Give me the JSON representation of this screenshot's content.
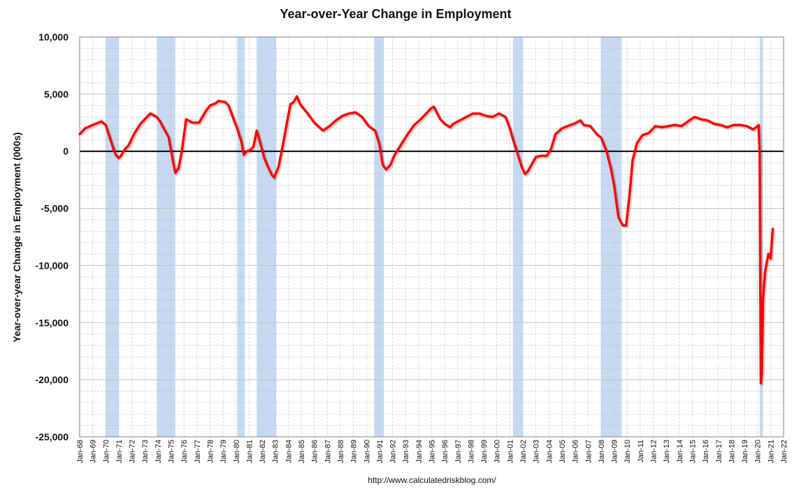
{
  "chart_data": {
    "type": "line",
    "title": "Year-over-Year Change in Employment",
    "ylabel": "Year-over-year Change in Employment (000s)",
    "xlabel": "",
    "source": "http://www.calculatedriskblog.com/",
    "ylim": [
      -25000,
      10000
    ],
    "xlim": [
      "1968-01",
      "2022-01"
    ],
    "y_ticks": [
      10000,
      5000,
      0,
      -5000,
      -10000,
      -15000,
      -20000,
      -25000
    ],
    "y_tick_labels": [
      "10,000",
      "5,000",
      "0",
      "-5,000",
      "-10,000",
      "-15,000",
      "-20,000",
      "-25,000"
    ],
    "x_tick_labels": [
      "Jan-68",
      "Jan-69",
      "Jan-70",
      "Jan-71",
      "Jan-72",
      "Jan-73",
      "Jan-74",
      "Jan-75",
      "Jan-76",
      "Jan-77",
      "Jan-78",
      "Jan-79",
      "Jan-80",
      "Jan-81",
      "Jan-82",
      "Jan-83",
      "Jan-84",
      "Jan-85",
      "Jan-86",
      "Jan-87",
      "Jan-88",
      "Jan-89",
      "Jan-90",
      "Jan-91",
      "Jan-92",
      "Jan-93",
      "Jan-94",
      "Jan-95",
      "Jan-96",
      "Jan-97",
      "Jan-98",
      "Jan-99",
      "Jan-00",
      "Jan-01",
      "Jan-02",
      "Jan-03",
      "Jan-04",
      "Jan-05",
      "Jan-06",
      "Jan-07",
      "Jan-08",
      "Jan-09",
      "Jan-10",
      "Jan-11",
      "Jan-12",
      "Jan-13",
      "Jan-14",
      "Jan-15",
      "Jan-16",
      "Jan-17",
      "Jan-18",
      "Jan-19",
      "Jan-20",
      "Jan-21",
      "Jan-22"
    ],
    "grid": true,
    "recessions": [
      {
        "start": "1970-01",
        "end": "1970-12"
      },
      {
        "start": "1973-12",
        "end": "1975-04"
      },
      {
        "start": "1980-02",
        "end": "1980-08"
      },
      {
        "start": "1981-08",
        "end": "1983-01"
      },
      {
        "start": "1990-08",
        "end": "1991-04"
      },
      {
        "start": "2001-04",
        "end": "2001-12"
      },
      {
        "start": "2008-01",
        "end": "2009-07"
      },
      {
        "start": "2020-03",
        "end": "2020-05"
      }
    ],
    "colors": {
      "line": "#ff0000",
      "recession": "#c5d9f1",
      "grid": "#c0c0c0",
      "zero_line": "#000000"
    },
    "series": [
      {
        "points": [
          [
            "1968-01",
            1500
          ],
          [
            "1968-06",
            2000
          ],
          [
            "1969-01",
            2300
          ],
          [
            "1969-09",
            2600
          ],
          [
            "1970-01",
            2300
          ],
          [
            "1970-06",
            800
          ],
          [
            "1970-10",
            -300
          ],
          [
            "1971-01",
            -600
          ],
          [
            "1971-03",
            -400
          ],
          [
            "1971-06",
            100
          ],
          [
            "1971-10",
            500
          ],
          [
            "1972-03",
            1500
          ],
          [
            "1972-09",
            2400
          ],
          [
            "1973-03",
            3000
          ],
          [
            "1973-06",
            3300
          ],
          [
            "1973-12",
            3000
          ],
          [
            "1974-03",
            2600
          ],
          [
            "1974-07",
            1900
          ],
          [
            "1974-11",
            1200
          ],
          [
            "1975-02",
            -400
          ],
          [
            "1975-05",
            -1900
          ],
          [
            "1975-08",
            -1500
          ],
          [
            "1975-11",
            0
          ],
          [
            "1976-03",
            2800
          ],
          [
            "1976-09",
            2500
          ],
          [
            "1977-03",
            2500
          ],
          [
            "1977-09",
            3500
          ],
          [
            "1978-01",
            4000
          ],
          [
            "1978-06",
            4200
          ],
          [
            "1978-09",
            4400
          ],
          [
            "1979-03",
            4300
          ],
          [
            "1979-06",
            4000
          ],
          [
            "1979-10",
            3000
          ],
          [
            "1980-02",
            2000
          ],
          [
            "1980-06",
            800
          ],
          [
            "1980-08",
            -300
          ],
          [
            "1980-11",
            0
          ],
          [
            "1981-02",
            100
          ],
          [
            "1981-05",
            400
          ],
          [
            "1981-08",
            1800
          ],
          [
            "1981-11",
            800
          ],
          [
            "1982-03",
            -600
          ],
          [
            "1982-06",
            -1300
          ],
          [
            "1982-10",
            -2100
          ],
          [
            "1982-12",
            -2300
          ],
          [
            "1983-04",
            -1400
          ],
          [
            "1983-08",
            500
          ],
          [
            "1983-12",
            2600
          ],
          [
            "1984-03",
            4100
          ],
          [
            "1984-06",
            4300
          ],
          [
            "1984-09",
            4800
          ],
          [
            "1984-12",
            4100
          ],
          [
            "1985-06",
            3400
          ],
          [
            "1986-01",
            2500
          ],
          [
            "1986-09",
            1800
          ],
          [
            "1987-03",
            2200
          ],
          [
            "1987-09",
            2700
          ],
          [
            "1988-03",
            3100
          ],
          [
            "1988-09",
            3300
          ],
          [
            "1989-03",
            3400
          ],
          [
            "1989-09",
            3000
          ],
          [
            "1990-03",
            2200
          ],
          [
            "1990-09",
            1800
          ],
          [
            "1991-01",
            600
          ],
          [
            "1991-04",
            -1200
          ],
          [
            "1991-07",
            -1600
          ],
          [
            "1991-11",
            -1200
          ],
          [
            "1992-03",
            -300
          ],
          [
            "1992-09",
            600
          ],
          [
            "1993-03",
            1500
          ],
          [
            "1993-09",
            2300
          ],
          [
            "1994-03",
            2800
          ],
          [
            "1994-09",
            3400
          ],
          [
            "1995-01",
            3800
          ],
          [
            "1995-03",
            3900
          ],
          [
            "1995-09",
            2800
          ],
          [
            "1996-01",
            2400
          ],
          [
            "1996-06",
            2100
          ],
          [
            "1996-09",
            2400
          ],
          [
            "1997-03",
            2700
          ],
          [
            "1997-09",
            3000
          ],
          [
            "1998-03",
            3300
          ],
          [
            "1998-09",
            3300
          ],
          [
            "1999-03",
            3100
          ],
          [
            "1999-09",
            3000
          ],
          [
            "2000-03",
            3300
          ],
          [
            "2000-09",
            3000
          ],
          [
            "2001-01",
            2000
          ],
          [
            "2001-04",
            1000
          ],
          [
            "2001-08",
            -200
          ],
          [
            "2001-12",
            -1400
          ],
          [
            "2002-03",
            -2000
          ],
          [
            "2002-06",
            -1700
          ],
          [
            "2002-10",
            -1000
          ],
          [
            "2003-01",
            -500
          ],
          [
            "2003-06",
            -400
          ],
          [
            "2003-11",
            -400
          ],
          [
            "2004-03",
            200
          ],
          [
            "2004-07",
            1500
          ],
          [
            "2005-01",
            2000
          ],
          [
            "2005-06",
            2200
          ],
          [
            "2005-12",
            2400
          ],
          [
            "2006-06",
            2700
          ],
          [
            "2006-09",
            2300
          ],
          [
            "2007-03",
            2200
          ],
          [
            "2007-09",
            1500
          ],
          [
            "2008-01",
            1200
          ],
          [
            "2008-06",
            0
          ],
          [
            "2008-10",
            -1500
          ],
          [
            "2009-01",
            -3000
          ],
          [
            "2009-05",
            -5800
          ],
          [
            "2009-09",
            -6500
          ],
          [
            "2009-12",
            -6500
          ],
          [
            "2010-03",
            -4000
          ],
          [
            "2010-06",
            -800
          ],
          [
            "2010-10",
            700
          ],
          [
            "2011-03",
            1400
          ],
          [
            "2011-09",
            1600
          ],
          [
            "2012-03",
            2200
          ],
          [
            "2012-09",
            2100
          ],
          [
            "2013-03",
            2200
          ],
          [
            "2013-09",
            2300
          ],
          [
            "2014-03",
            2200
          ],
          [
            "2014-09",
            2600
          ],
          [
            "2015-03",
            3000
          ],
          [
            "2015-09",
            2800
          ],
          [
            "2016-03",
            2700
          ],
          [
            "2016-09",
            2400
          ],
          [
            "2017-03",
            2300
          ],
          [
            "2017-09",
            2100
          ],
          [
            "2018-03",
            2300
          ],
          [
            "2018-09",
            2300
          ],
          [
            "2019-03",
            2200
          ],
          [
            "2019-09",
            1900
          ],
          [
            "2020-01",
            2200
          ],
          [
            "2020-02",
            2300
          ],
          [
            "2020-03",
            -200
          ],
          [
            "2020-04",
            -20300
          ],
          [
            "2020-05",
            -19500
          ],
          [
            "2020-06",
            -13000
          ],
          [
            "2020-08",
            -10500
          ],
          [
            "2020-11",
            -9000
          ],
          [
            "2020-12",
            -9000
          ],
          [
            "2021-01",
            -9400
          ],
          [
            "2021-03",
            -6800
          ]
        ]
      }
    ]
  }
}
